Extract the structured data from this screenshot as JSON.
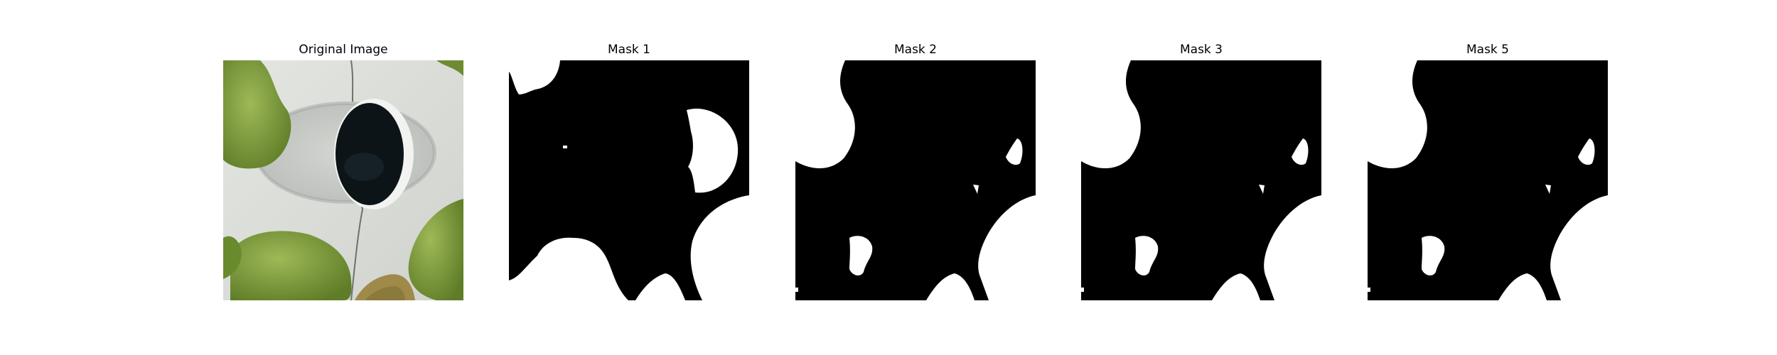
{
  "figure": {
    "panels": [
      {
        "title": "Original Image",
        "kind": "photo"
      },
      {
        "title": "Mask 1",
        "kind": "mask"
      },
      {
        "title": "Mask 2",
        "kind": "mask"
      },
      {
        "title": "Mask 3",
        "kind": "mask"
      },
      {
        "title": "Mask 5",
        "kind": "mask"
      }
    ],
    "colors": {
      "background": "#ffffff",
      "mask_foreground": "#ffffff",
      "mask_background": "#000000",
      "leaf_green": "#7a9a3a",
      "leaf_dark": "#5f7d28",
      "surface": "#d9dcd8",
      "hole": "#0c1418"
    }
  }
}
